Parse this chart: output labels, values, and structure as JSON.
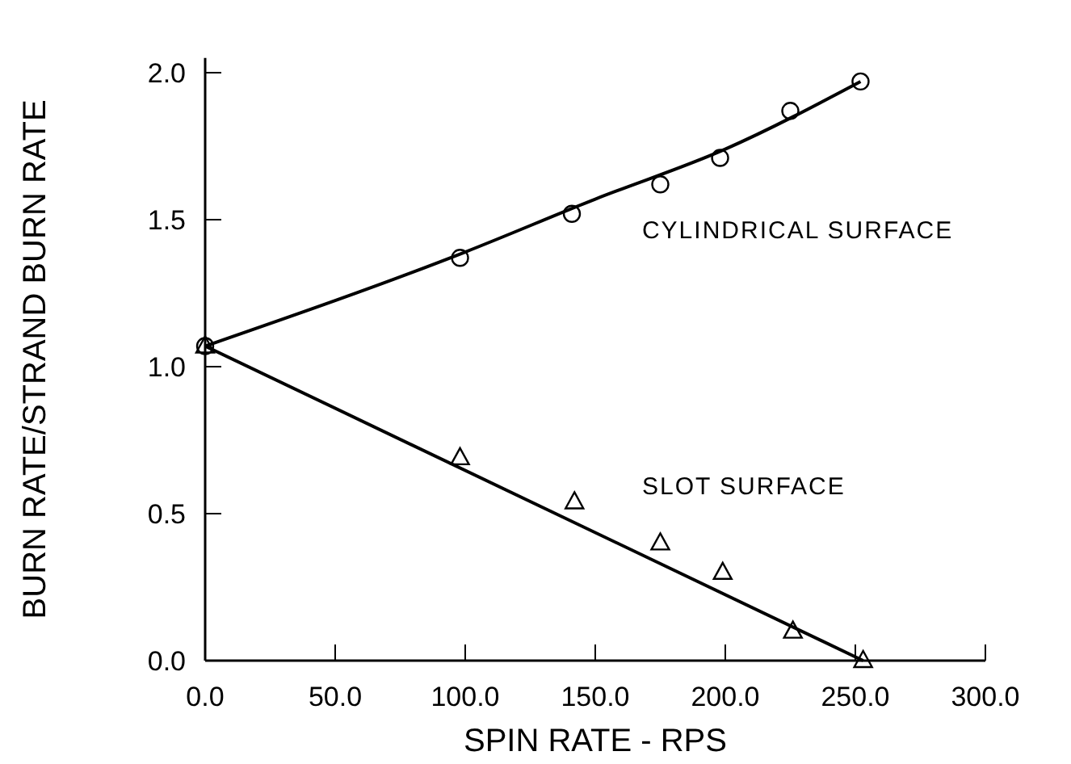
{
  "chart_data": {
    "type": "scatter",
    "xlabel": "SPIN RATE - RPS",
    "ylabel": "BURN RATE/STRAND BURN RATE",
    "xlim": [
      0,
      300
    ],
    "ylim": [
      0,
      2.05
    ],
    "xticks": [
      {
        "value": 0,
        "label": "0.0"
      },
      {
        "value": 50,
        "label": "50.0"
      },
      {
        "value": 100,
        "label": "100.0"
      },
      {
        "value": 150,
        "label": "150.0"
      },
      {
        "value": 200,
        "label": "200.0"
      },
      {
        "value": 250,
        "label": "250.0"
      },
      {
        "value": 300,
        "label": "300.0"
      }
    ],
    "yticks": [
      {
        "value": 0,
        "label": "0.0"
      },
      {
        "value": 0.5,
        "label": "0.5"
      },
      {
        "value": 1,
        "label": "1.0"
      },
      {
        "value": 1.5,
        "label": "1.5"
      },
      {
        "value": 2,
        "label": "2.0"
      }
    ],
    "series": [
      {
        "marker": "circle",
        "color": "#000000",
        "x": [
          0,
          98,
          141,
          175,
          198,
          225,
          252
        ],
        "values": [
          1.07,
          1.37,
          1.52,
          1.62,
          1.71,
          1.87,
          1.97
        ]
      },
      {
        "marker": "triangle",
        "color": "#000000",
        "x": [
          0,
          98,
          142,
          175,
          199,
          226,
          253
        ],
        "values": [
          1.07,
          0.69,
          0.54,
          0.4,
          0.3,
          0.1,
          0
        ]
      },
      {
        "type": "line",
        "marker": "none",
        "line_style": "solid",
        "color": "#000000",
        "x": [
          0,
          100,
          150,
          200,
          252
        ],
        "values": [
          1.07,
          1.39,
          1.57,
          1.74,
          1.97
        ]
      },
      {
        "type": "line",
        "marker": "none",
        "line_style": "solid",
        "color": "#000000",
        "x": [
          0,
          253
        ],
        "values": [
          1.07,
          0
        ]
      }
    ],
    "annotations": [
      "CYLINDRICAL SURFACE",
      "SLOT SURFACE"
    ]
  }
}
